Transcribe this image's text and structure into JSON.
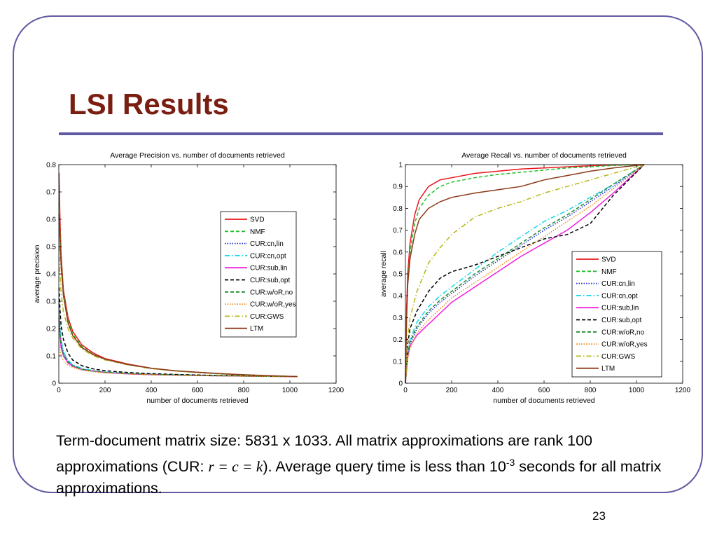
{
  "slide": {
    "title": "LSI Results",
    "caption": {
      "part1": "Term-document matrix size: 5831 x 1033.  All matrix approximations are rank 100 approximations (CUR: ",
      "math": "r = c = k",
      "part2": ").  Average query time is less than 10",
      "exponent": "-3",
      "part3": " seconds for all matrix approximations."
    },
    "page_number": "23"
  },
  "colors": {
    "frame": "#5f5aa2",
    "title": "#7a1e12"
  },
  "chart_data": [
    {
      "type": "line",
      "title": "Average Precision vs. number of documents retrieved",
      "xlabel": "number of documents retrieved",
      "ylabel": "average precision",
      "xlim": [
        0,
        1200
      ],
      "ylim": [
        0,
        0.8
      ],
      "xticks": [
        0,
        200,
        400,
        600,
        800,
        1000,
        1200
      ],
      "yticks": [
        0,
        0.1,
        0.2,
        0.3,
        0.4,
        0.5,
        0.6,
        0.7,
        0.8
      ],
      "grid": false,
      "legend": "right-middle",
      "series": [
        {
          "name": "SVD",
          "color": "#e8141c",
          "dash": "solid",
          "x": [
            1,
            5,
            10,
            20,
            40,
            60,
            100,
            150,
            200,
            300,
            400,
            500,
            600,
            700,
            800,
            900,
            1033
          ],
          "y": [
            0.77,
            0.6,
            0.47,
            0.34,
            0.24,
            0.19,
            0.14,
            0.11,
            0.09,
            0.07,
            0.055,
            0.045,
            0.04,
            0.035,
            0.03,
            0.027,
            0.024
          ]
        },
        {
          "name": "NMF",
          "color": "#22c02a",
          "dash": "dash",
          "x": [
            1,
            5,
            10,
            20,
            40,
            60,
            100,
            150,
            200,
            300,
            400,
            500,
            600,
            700,
            800,
            900,
            1033
          ],
          "y": [
            0.66,
            0.55,
            0.45,
            0.33,
            0.23,
            0.18,
            0.135,
            0.105,
            0.088,
            0.068,
            0.054,
            0.045,
            0.039,
            0.034,
            0.03,
            0.027,
            0.024
          ]
        },
        {
          "name": "CUR:cn,lin",
          "color": "#1f2bd6",
          "dash": "dot",
          "x": [
            1,
            5,
            10,
            20,
            40,
            60,
            100,
            150,
            200,
            300,
            400,
            500,
            600,
            700,
            800,
            900,
            1033
          ],
          "y": [
            0.3,
            0.2,
            0.15,
            0.11,
            0.08,
            0.066,
            0.052,
            0.045,
            0.04,
            0.035,
            0.032,
            0.03,
            0.029,
            0.028,
            0.027,
            0.026,
            0.024
          ]
        },
        {
          "name": "CUR:cn,opt",
          "color": "#10d8e6",
          "dash": "dashdot",
          "x": [
            1,
            5,
            10,
            20,
            40,
            60,
            100,
            150,
            200,
            300,
            400,
            500,
            600,
            700,
            800,
            900,
            1033
          ],
          "y": [
            0.3,
            0.21,
            0.16,
            0.115,
            0.083,
            0.068,
            0.054,
            0.046,
            0.041,
            0.036,
            0.033,
            0.031,
            0.029,
            0.028,
            0.027,
            0.026,
            0.024
          ]
        },
        {
          "name": "CUR:sub,lin",
          "color": "#f020e0",
          "dash": "solid",
          "x": [
            1,
            5,
            10,
            20,
            40,
            60,
            100,
            150,
            200,
            300,
            400,
            500,
            600,
            700,
            800,
            900,
            1033
          ],
          "y": [
            0.24,
            0.17,
            0.13,
            0.1,
            0.074,
            0.062,
            0.05,
            0.044,
            0.039,
            0.034,
            0.031,
            0.03,
            0.028,
            0.027,
            0.026,
            0.025,
            0.024
          ]
        },
        {
          "name": "CUR:sub,opt",
          "color": "#000000",
          "dash": "dash",
          "x": [
            1,
            5,
            10,
            20,
            40,
            60,
            100,
            150,
            200,
            300,
            400,
            500,
            600,
            700,
            800,
            900,
            1033
          ],
          "y": [
            0.35,
            0.27,
            0.21,
            0.16,
            0.11,
            0.085,
            0.064,
            0.052,
            0.046,
            0.039,
            0.035,
            0.032,
            0.03,
            0.028,
            0.027,
            0.026,
            0.024
          ]
        },
        {
          "name": "CUR:w/oR,no",
          "color": "#1a8a2a",
          "dash": "dash",
          "x": [
            1,
            5,
            10,
            20,
            40,
            60,
            100,
            150,
            200,
            300,
            400,
            500,
            600,
            700,
            800,
            900,
            1033
          ],
          "y": [
            0.24,
            0.18,
            0.14,
            0.105,
            0.078,
            0.064,
            0.051,
            0.044,
            0.04,
            0.035,
            0.032,
            0.03,
            0.028,
            0.027,
            0.026,
            0.025,
            0.024
          ]
        },
        {
          "name": "CUR:w/oR,yes",
          "color": "#f08a1a",
          "dash": "dot",
          "x": [
            1,
            5,
            10,
            20,
            40,
            60,
            100,
            150,
            200,
            300,
            400,
            500,
            600,
            700,
            800,
            900,
            1033
          ],
          "y": [
            0.15,
            0.12,
            0.1,
            0.082,
            0.066,
            0.058,
            0.048,
            0.042,
            0.038,
            0.034,
            0.031,
            0.029,
            0.028,
            0.027,
            0.026,
            0.025,
            0.024
          ]
        },
        {
          "name": "CUR:GWS",
          "color": "#b8b81a",
          "dash": "dashdot",
          "x": [
            1,
            5,
            10,
            20,
            40,
            60,
            100,
            150,
            200,
            300,
            400,
            500,
            600,
            700,
            800,
            900,
            1033
          ],
          "y": [
            0.5,
            0.4,
            0.33,
            0.26,
            0.2,
            0.165,
            0.125,
            0.1,
            0.085,
            0.067,
            0.053,
            0.045,
            0.039,
            0.034,
            0.03,
            0.027,
            0.024
          ]
        },
        {
          "name": "LTM",
          "color": "#8a3a1a",
          "dash": "solid",
          "x": [
            1,
            5,
            10,
            20,
            40,
            60,
            100,
            150,
            200,
            300,
            400,
            500,
            600,
            700,
            800,
            900,
            1033
          ],
          "y": [
            0.62,
            0.52,
            0.43,
            0.32,
            0.22,
            0.175,
            0.13,
            0.104,
            0.088,
            0.068,
            0.055,
            0.046,
            0.04,
            0.035,
            0.031,
            0.028,
            0.024
          ]
        }
      ]
    },
    {
      "type": "line",
      "title": "Average Recall vs. number of documents retrieved",
      "xlabel": "number of documents retrieved",
      "ylabel": "average recall",
      "xlim": [
        0,
        1200
      ],
      "ylim": [
        0,
        1
      ],
      "xticks": [
        0,
        200,
        400,
        600,
        800,
        1000,
        1200
      ],
      "yticks": [
        0,
        0.1,
        0.2,
        0.3,
        0.4,
        0.5,
        0.6,
        0.7,
        0.8,
        0.9,
        1
      ],
      "grid": false,
      "legend": "bottom-right",
      "series": [
        {
          "name": "SVD",
          "color": "#e8141c",
          "dash": "solid",
          "x": [
            0,
            5,
            10,
            20,
            40,
            60,
            100,
            150,
            200,
            300,
            400,
            500,
            600,
            700,
            800,
            900,
            1033
          ],
          "y": [
            0,
            0.35,
            0.5,
            0.64,
            0.77,
            0.84,
            0.9,
            0.93,
            0.94,
            0.96,
            0.97,
            0.98,
            0.985,
            0.99,
            0.995,
            0.998,
            1
          ]
        },
        {
          "name": "NMF",
          "color": "#22c02a",
          "dash": "dash",
          "x": [
            0,
            5,
            10,
            20,
            40,
            60,
            100,
            150,
            200,
            300,
            400,
            500,
            600,
            700,
            800,
            900,
            1033
          ],
          "y": [
            0,
            0.3,
            0.45,
            0.6,
            0.73,
            0.8,
            0.86,
            0.9,
            0.92,
            0.94,
            0.955,
            0.965,
            0.975,
            0.985,
            0.99,
            0.996,
            1
          ]
        },
        {
          "name": "CUR:cn,lin",
          "color": "#1f2bd6",
          "dash": "dot",
          "x": [
            0,
            10,
            20,
            50,
            100,
            150,
            200,
            300,
            400,
            500,
            600,
            700,
            800,
            900,
            1033
          ],
          "y": [
            0,
            0.12,
            0.18,
            0.25,
            0.32,
            0.37,
            0.41,
            0.49,
            0.56,
            0.63,
            0.7,
            0.76,
            0.83,
            0.9,
            1
          ]
        },
        {
          "name": "CUR:cn,opt",
          "color": "#10d8e6",
          "dash": "dashdot",
          "x": [
            0,
            10,
            20,
            50,
            100,
            150,
            200,
            300,
            400,
            500,
            600,
            700,
            800,
            900,
            1033
          ],
          "y": [
            0,
            0.14,
            0.2,
            0.28,
            0.35,
            0.4,
            0.44,
            0.52,
            0.6,
            0.67,
            0.74,
            0.79,
            0.85,
            0.91,
            1
          ]
        },
        {
          "name": "CUR:sub,lin",
          "color": "#f020e0",
          "dash": "solid",
          "x": [
            0,
            10,
            20,
            50,
            100,
            150,
            200,
            300,
            400,
            500,
            600,
            700,
            800,
            900,
            1033
          ],
          "y": [
            0,
            0.12,
            0.17,
            0.22,
            0.27,
            0.32,
            0.37,
            0.44,
            0.51,
            0.58,
            0.64,
            0.7,
            0.78,
            0.87,
            1
          ]
        },
        {
          "name": "CUR:sub,opt",
          "color": "#000000",
          "dash": "dash",
          "x": [
            0,
            10,
            20,
            50,
            100,
            150,
            200,
            300,
            400,
            500,
            600,
            700,
            800,
            900,
            1033
          ],
          "y": [
            0,
            0.18,
            0.25,
            0.33,
            0.42,
            0.48,
            0.51,
            0.54,
            0.58,
            0.62,
            0.66,
            0.68,
            0.73,
            0.86,
            1
          ]
        },
        {
          "name": "CUR:w/oR,no",
          "color": "#1a8a2a",
          "dash": "dash",
          "x": [
            0,
            10,
            20,
            50,
            100,
            150,
            200,
            300,
            400,
            500,
            600,
            700,
            800,
            900,
            1033
          ],
          "y": [
            0,
            0.13,
            0.19,
            0.26,
            0.33,
            0.38,
            0.42,
            0.5,
            0.57,
            0.64,
            0.71,
            0.77,
            0.84,
            0.91,
            1
          ]
        },
        {
          "name": "CUR:w/oR,yes",
          "color": "#f08a1a",
          "dash": "dot",
          "x": [
            0,
            10,
            20,
            50,
            100,
            150,
            200,
            300,
            400,
            500,
            600,
            700,
            800,
            900,
            1033
          ],
          "y": [
            0,
            0.11,
            0.16,
            0.23,
            0.29,
            0.34,
            0.39,
            0.46,
            0.53,
            0.6,
            0.67,
            0.74,
            0.81,
            0.89,
            1
          ]
        },
        {
          "name": "CUR:GWS",
          "color": "#b8b81a",
          "dash": "dashdot",
          "x": [
            0,
            10,
            20,
            50,
            100,
            150,
            200,
            300,
            400,
            500,
            600,
            700,
            800,
            900,
            1033
          ],
          "y": [
            0,
            0.2,
            0.3,
            0.42,
            0.55,
            0.62,
            0.68,
            0.76,
            0.8,
            0.83,
            0.87,
            0.9,
            0.93,
            0.96,
            1
          ]
        },
        {
          "name": "LTM",
          "color": "#8a3a1a",
          "dash": "solid",
          "x": [
            0,
            5,
            10,
            20,
            40,
            60,
            100,
            150,
            200,
            300,
            400,
            500,
            600,
            700,
            800,
            900,
            1033
          ],
          "y": [
            0,
            0.3,
            0.45,
            0.57,
            0.68,
            0.75,
            0.8,
            0.83,
            0.85,
            0.87,
            0.885,
            0.9,
            0.93,
            0.95,
            0.97,
            0.985,
            1
          ]
        }
      ]
    }
  ]
}
